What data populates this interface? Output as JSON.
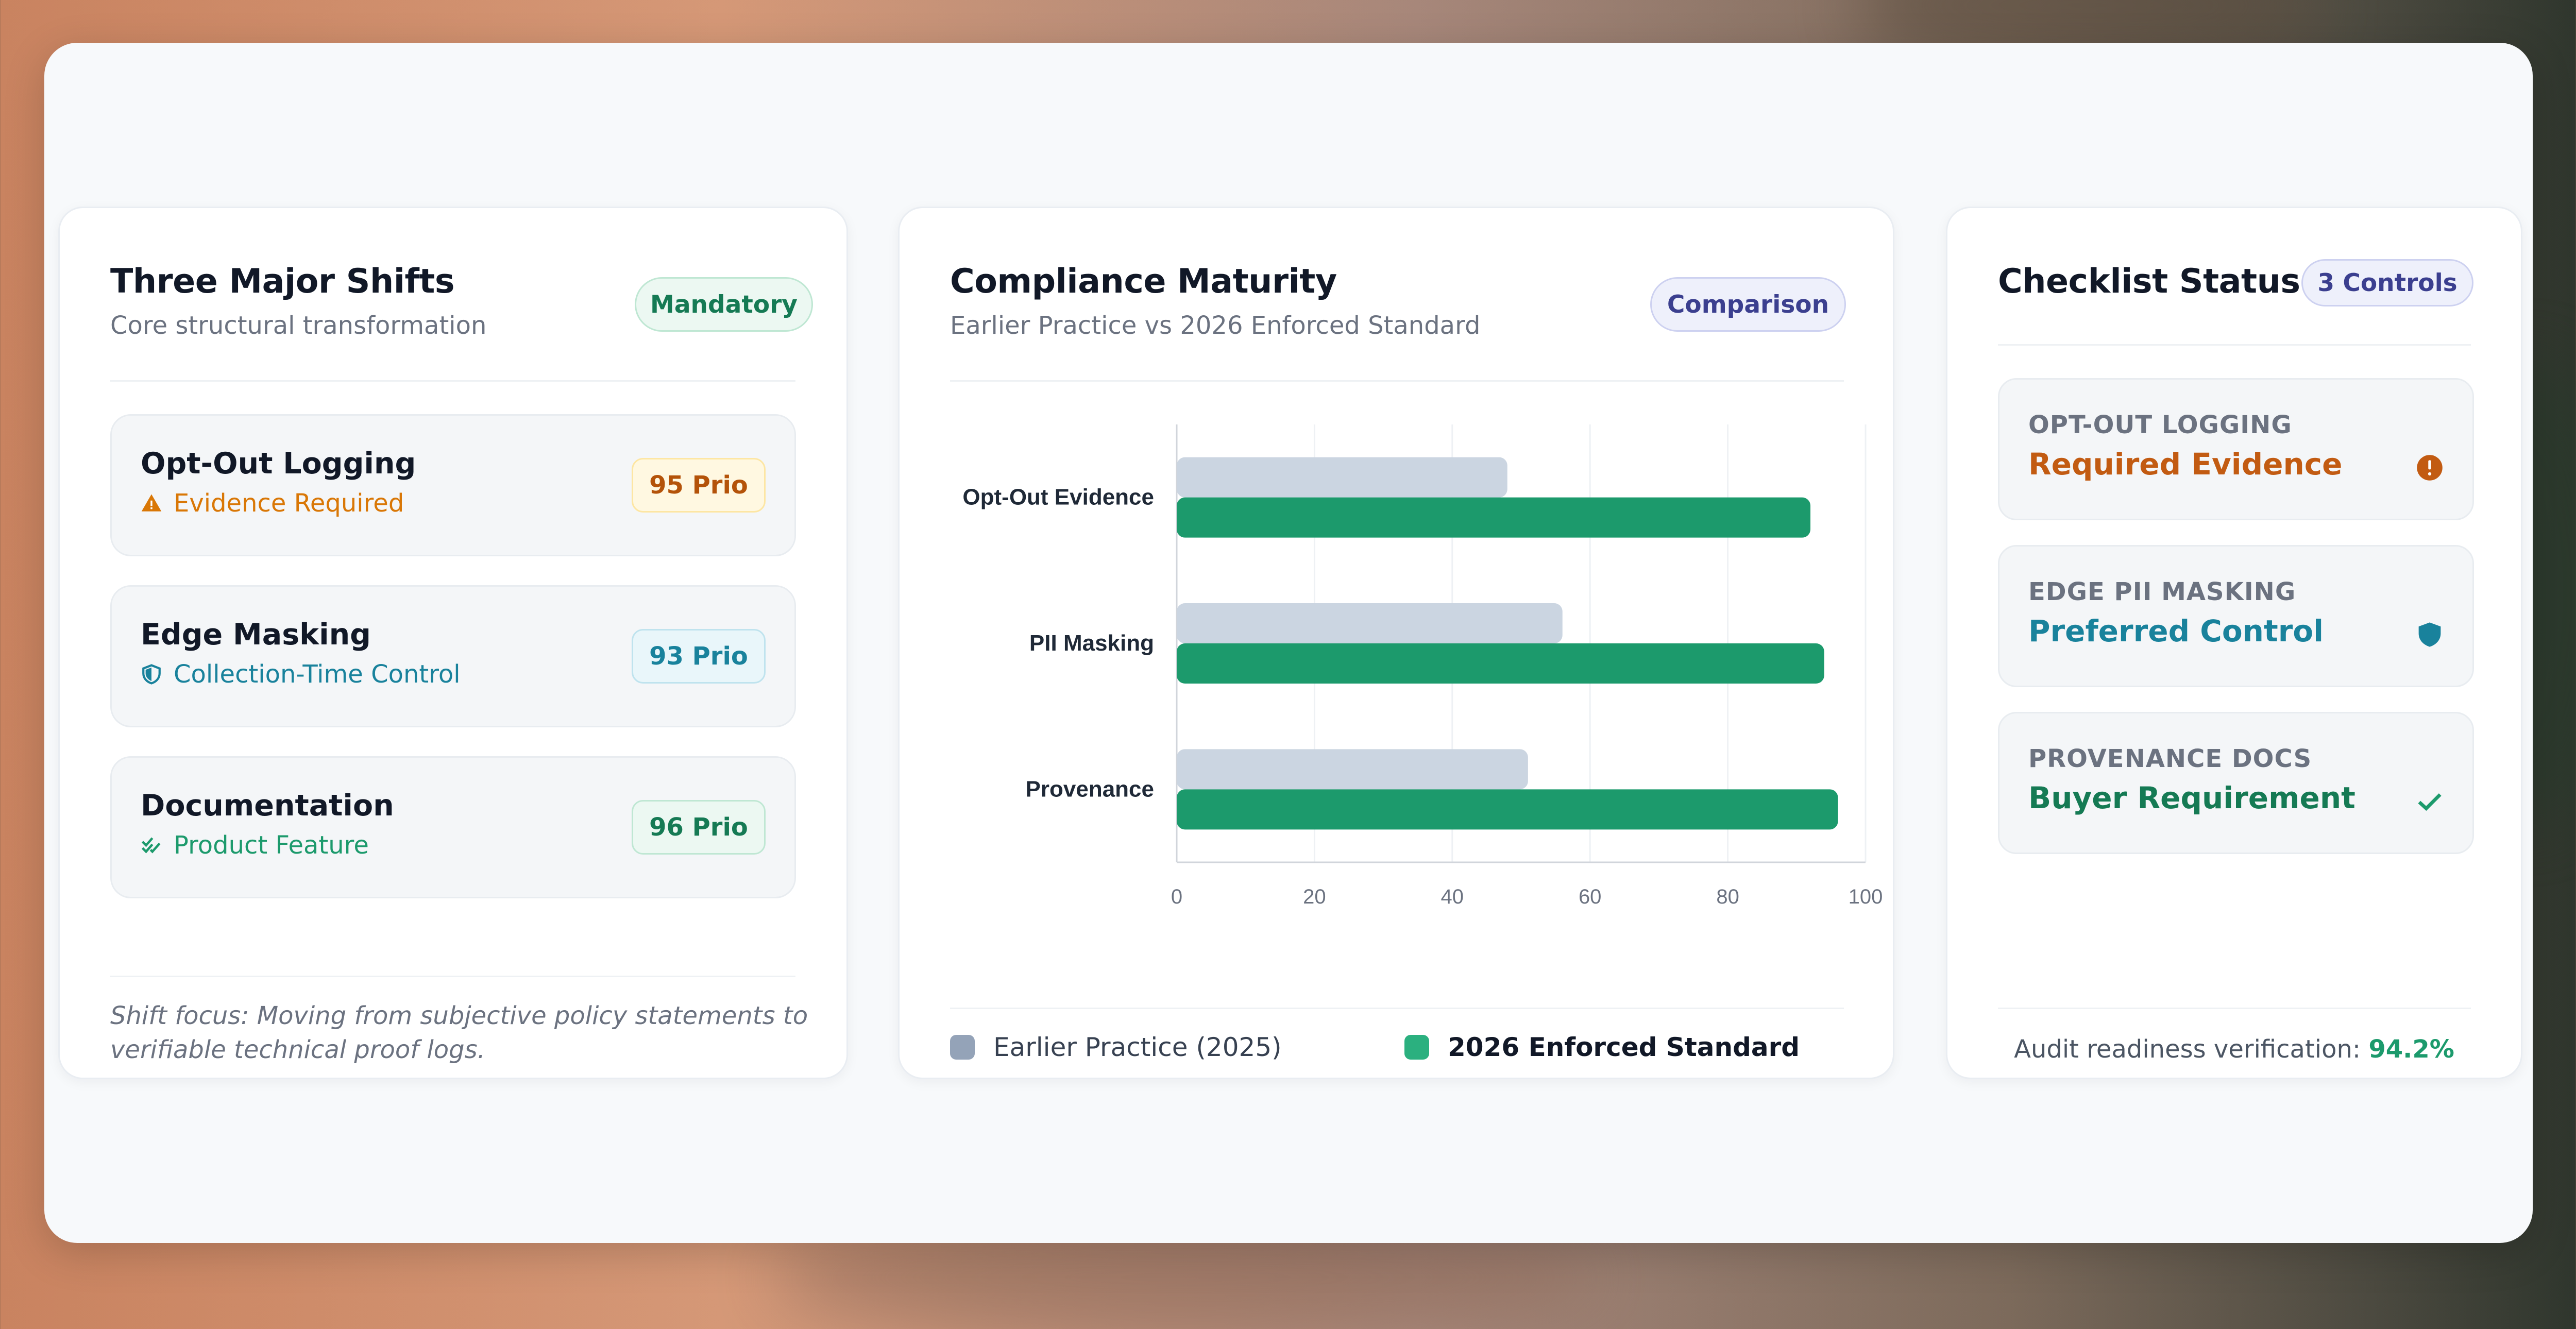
{
  "colors": {
    "accent_green": "#1c9a6c",
    "orange": "#c25b12",
    "teal": "#19829c",
    "gray_bar": "#cbd5e1",
    "purple": "#3b3f8f"
  },
  "shifts_card": {
    "title": "Three Major Shifts",
    "subtitle": "Core structural transformation",
    "badge": "Mandatory",
    "items": [
      {
        "title": "Opt-Out Logging",
        "sub": "Evidence Required",
        "sub_icon": "warning-icon",
        "prio": "95 Prio",
        "tone": "orange"
      },
      {
        "title": "Edge Masking",
        "sub": "Collection-Time Control",
        "sub_icon": "shield-icon",
        "prio": "93 Prio",
        "tone": "teal"
      },
      {
        "title": "Documentation",
        "sub": "Product Feature",
        "sub_icon": "double-check-icon",
        "prio": "96 Prio",
        "tone": "green"
      }
    ],
    "footnote": "Shift focus: Moving from subjective policy statements to verifiable technical proof logs."
  },
  "maturity_card": {
    "title": "Compliance Maturity",
    "subtitle": "Earlier Practice vs 2026 Enforced Standard",
    "badge": "Comparison",
    "legend": [
      "Earlier Practice (2025)",
      "2026 Enforced Standard"
    ]
  },
  "chart_data": {
    "type": "bar",
    "orientation": "horizontal",
    "categories": [
      "Opt-Out Evidence",
      "PII Masking",
      "Provenance"
    ],
    "series": [
      {
        "name": "Earlier Practice (2025)",
        "values": [
          48,
          56,
          51
        ],
        "color": "#cbd5e1"
      },
      {
        "name": "2026 Enforced Standard",
        "values": [
          92,
          94,
          96
        ],
        "color": "#1c9a6c"
      }
    ],
    "xlim": [
      0,
      100
    ],
    "xticks": [
      "0",
      "20",
      "40",
      "60",
      "80",
      "100"
    ],
    "grid": true,
    "legend_position": "bottom"
  },
  "checklist_card": {
    "title": "Checklist Status",
    "badge": "3 Controls",
    "items": [
      {
        "label": "OPT-OUT LOGGING",
        "value": "Required Evidence",
        "icon": "alert-circle-icon",
        "tone": "orange"
      },
      {
        "label": "EDGE PII MASKING",
        "value": "Preferred Control",
        "icon": "shield-icon",
        "tone": "teal"
      },
      {
        "label": "PROVENANCE DOCS",
        "value": "Buyer Requirement",
        "icon": "check-icon",
        "tone": "green"
      }
    ],
    "readiness_label": "Audit readiness verification:",
    "readiness_value": "94.2%"
  }
}
